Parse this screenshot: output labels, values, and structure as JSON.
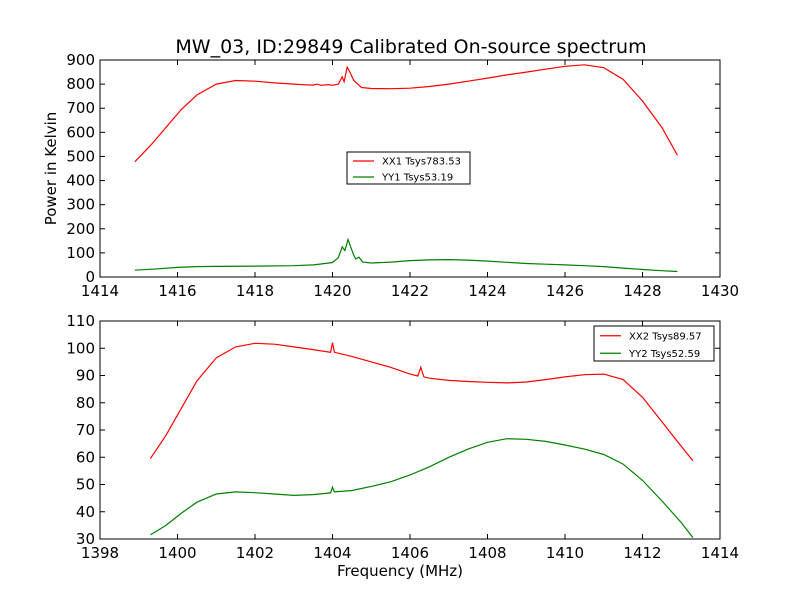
{
  "figure": {
    "title": "MW_03, ID:29849 Calibrated On-source spectrum"
  },
  "colors": {
    "xx": "#ff0000",
    "yy": "#008000",
    "background": "#ffffff",
    "axis": "#000000"
  },
  "chart_data": [
    {
      "type": "line",
      "title": "MW_03, ID:29849 Calibrated On-source spectrum",
      "xlabel": "",
      "ylabel": "Power in Kelvin",
      "xlim": [
        1414,
        1430
      ],
      "ylim": [
        0,
        900
      ],
      "xticks": [
        1414,
        1416,
        1418,
        1420,
        1422,
        1424,
        1426,
        1428,
        1430
      ],
      "yticks": [
        0,
        100,
        200,
        300,
        400,
        500,
        600,
        700,
        800,
        900
      ],
      "grid": false,
      "legend_position": "center",
      "series": [
        {
          "name": "XX1 Tsys783.53",
          "color": "#ff0000",
          "points": [
            [
              1414.9,
              478
            ],
            [
              1415.3,
              545
            ],
            [
              1415.7,
              620
            ],
            [
              1416.1,
              695
            ],
            [
              1416.5,
              755
            ],
            [
              1417.0,
              800
            ],
            [
              1417.5,
              815
            ],
            [
              1418.0,
              812
            ],
            [
              1418.5,
              805
            ],
            [
              1419.0,
              800
            ],
            [
              1419.3,
              797
            ],
            [
              1419.5,
              796
            ],
            [
              1419.6,
              800
            ],
            [
              1419.7,
              795
            ],
            [
              1419.9,
              798
            ],
            [
              1420.0,
              795
            ],
            [
              1420.15,
              800
            ],
            [
              1420.25,
              830
            ],
            [
              1420.3,
              810
            ],
            [
              1420.38,
              870
            ],
            [
              1420.45,
              850
            ],
            [
              1420.55,
              815
            ],
            [
              1420.65,
              800
            ],
            [
              1420.75,
              786
            ],
            [
              1421.0,
              782
            ],
            [
              1421.5,
              781
            ],
            [
              1422.0,
              783
            ],
            [
              1422.5,
              790
            ],
            [
              1423.0,
              800
            ],
            [
              1423.5,
              812
            ],
            [
              1424.0,
              825
            ],
            [
              1424.5,
              838
            ],
            [
              1425.0,
              850
            ],
            [
              1425.5,
              862
            ],
            [
              1426.0,
              874
            ],
            [
              1426.5,
              880
            ],
            [
              1427.0,
              868
            ],
            [
              1427.5,
              820
            ],
            [
              1428.0,
              730
            ],
            [
              1428.5,
              620
            ],
            [
              1428.9,
              505
            ]
          ]
        },
        {
          "name": "YY1 Tsys53.19",
          "color": "#008000",
          "points": [
            [
              1414.9,
              28
            ],
            [
              1415.5,
              34
            ],
            [
              1416.0,
              40
            ],
            [
              1416.5,
              43
            ],
            [
              1417.0,
              44
            ],
            [
              1418.0,
              45
            ],
            [
              1419.0,
              47
            ],
            [
              1419.5,
              50
            ],
            [
              1419.7,
              54
            ],
            [
              1420.0,
              60
            ],
            [
              1420.15,
              80
            ],
            [
              1420.25,
              125
            ],
            [
              1420.32,
              110
            ],
            [
              1420.4,
              155
            ],
            [
              1420.48,
              120
            ],
            [
              1420.55,
              90
            ],
            [
              1420.6,
              75
            ],
            [
              1420.68,
              82
            ],
            [
              1420.78,
              62
            ],
            [
              1421.0,
              58
            ],
            [
              1421.5,
              62
            ],
            [
              1422.0,
              68
            ],
            [
              1422.5,
              71
            ],
            [
              1423.0,
              72
            ],
            [
              1423.5,
              70
            ],
            [
              1424.0,
              66
            ],
            [
              1424.5,
              61
            ],
            [
              1425.0,
              56
            ],
            [
              1425.5,
              53
            ],
            [
              1426.0,
              50
            ],
            [
              1426.5,
              47
            ],
            [
              1427.0,
              43
            ],
            [
              1427.5,
              37
            ],
            [
              1428.0,
              31
            ],
            [
              1428.5,
              26
            ],
            [
              1428.9,
              23
            ]
          ]
        }
      ]
    },
    {
      "type": "line",
      "title": "",
      "xlabel": "Frequency (MHz)",
      "ylabel": "",
      "xlim": [
        1398,
        1414
      ],
      "ylim": [
        30,
        110
      ],
      "xticks": [
        1398,
        1400,
        1402,
        1404,
        1406,
        1408,
        1410,
        1412,
        1414
      ],
      "yticks": [
        30,
        40,
        50,
        60,
        70,
        80,
        90,
        100,
        110
      ],
      "grid": false,
      "legend_position": "top-right",
      "series": [
        {
          "name": "XX2 Tsys89.57",
          "color": "#ff0000",
          "points": [
            [
              1399.3,
              59.5
            ],
            [
              1399.7,
              68
            ],
            [
              1400.1,
              78
            ],
            [
              1400.5,
              88
            ],
            [
              1401.0,
              96.5
            ],
            [
              1401.5,
              100.5
            ],
            [
              1402.0,
              101.8
            ],
            [
              1402.5,
              101.5
            ],
            [
              1403.0,
              100.5
            ],
            [
              1403.5,
              99.5
            ],
            [
              1403.95,
              98.5
            ],
            [
              1404.0,
              102
            ],
            [
              1404.05,
              98.5
            ],
            [
              1404.5,
              97
            ],
            [
              1405.0,
              95
            ],
            [
              1405.5,
              93
            ],
            [
              1406.0,
              90.5
            ],
            [
              1406.2,
              89.8
            ],
            [
              1406.28,
              93
            ],
            [
              1406.36,
              89.5
            ],
            [
              1406.5,
              89
            ],
            [
              1407.0,
              88.2
            ],
            [
              1407.5,
              87.8
            ],
            [
              1408.0,
              87.5
            ],
            [
              1408.5,
              87.3
            ],
            [
              1409.0,
              87.6
            ],
            [
              1409.5,
              88.5
            ],
            [
              1410.0,
              89.5
            ],
            [
              1410.5,
              90.3
            ],
            [
              1411.0,
              90.5
            ],
            [
              1411.5,
              88.5
            ],
            [
              1412.0,
              82
            ],
            [
              1412.5,
              73
            ],
            [
              1413.0,
              64
            ],
            [
              1413.3,
              58.7
            ]
          ]
        },
        {
          "name": "YY2 Tsys52.59",
          "color": "#008000",
          "points": [
            [
              1399.3,
              31.5
            ],
            [
              1399.7,
              35
            ],
            [
              1400.1,
              39.5
            ],
            [
              1400.5,
              43.5
            ],
            [
              1401.0,
              46.5
            ],
            [
              1401.5,
              47.3
            ],
            [
              1402.0,
              47
            ],
            [
              1402.5,
              46.5
            ],
            [
              1403.0,
              46
            ],
            [
              1403.5,
              46.3
            ],
            [
              1403.95,
              46.9
            ],
            [
              1404.0,
              49
            ],
            [
              1404.05,
              47.3
            ],
            [
              1404.5,
              47.8
            ],
            [
              1405.0,
              49.3
            ],
            [
              1405.5,
              51
            ],
            [
              1406.0,
              53.5
            ],
            [
              1406.5,
              56.5
            ],
            [
              1407.0,
              60
            ],
            [
              1407.5,
              63
            ],
            [
              1408.0,
              65.5
            ],
            [
              1408.5,
              66.8
            ],
            [
              1409.0,
              66.6
            ],
            [
              1409.5,
              65.8
            ],
            [
              1410.0,
              64.5
            ],
            [
              1410.5,
              63
            ],
            [
              1411.0,
              61
            ],
            [
              1411.5,
              57.5
            ],
            [
              1412.0,
              51.5
            ],
            [
              1412.5,
              44
            ],
            [
              1413.0,
              36
            ],
            [
              1413.3,
              30.5
            ]
          ]
        }
      ]
    }
  ]
}
